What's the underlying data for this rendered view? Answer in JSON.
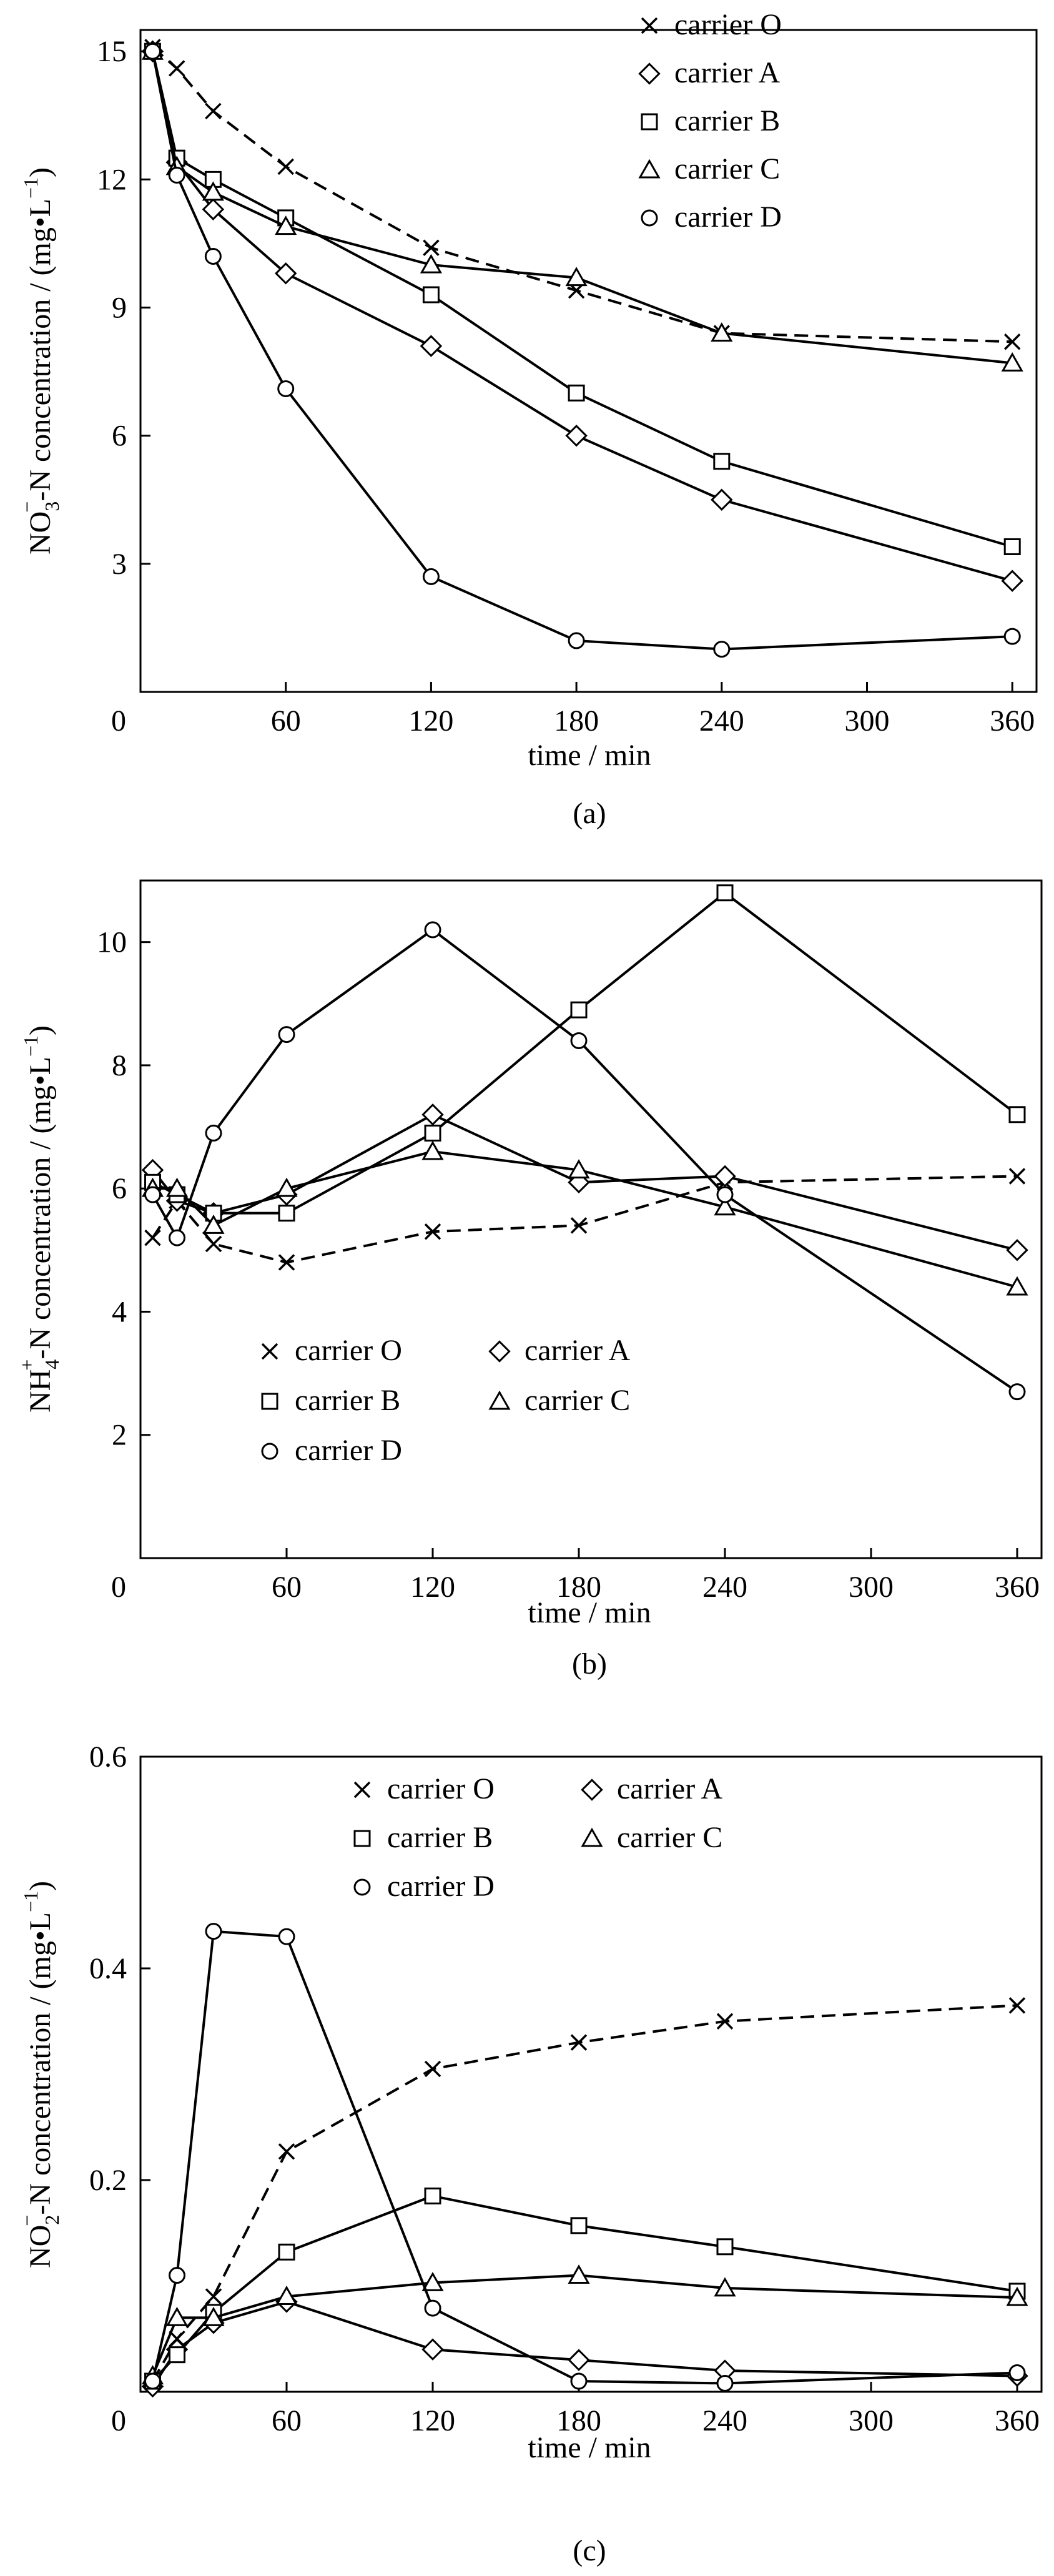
{
  "chart_data": [
    {
      "id": "a",
      "type": "line",
      "caption": "(a)",
      "xlabel": "time / min",
      "ylabel_parts": [
        "NO",
        "3",
        "−",
        "-N  concentration / (mg•L",
        "−1",
        ")"
      ],
      "xlim": [
        0,
        370
      ],
      "ylim": [
        0,
        15.5
      ],
      "xticks": [
        "0",
        "60",
        "120",
        "180",
        "240",
        "300",
        "360"
      ],
      "yticks": [
        "3",
        "6",
        "9",
        "12",
        "15"
      ],
      "legend_rows": [
        [
          "O"
        ],
        [
          "A"
        ],
        [
          "B"
        ],
        [
          "C"
        ],
        [
          "D"
        ]
      ],
      "series": [
        {
          "key": "O",
          "name": "carrier O",
          "marker": "x",
          "dashed": true,
          "x": [
            5,
            15,
            30,
            60,
            120,
            180,
            240,
            360
          ],
          "y": [
            15.1,
            14.6,
            13.6,
            12.3,
            10.4,
            9.4,
            8.4,
            8.2
          ]
        },
        {
          "key": "A",
          "name": "carrier A",
          "marker": "diamond",
          "dashed": false,
          "x": [
            5,
            15,
            30,
            60,
            120,
            180,
            240,
            360
          ],
          "y": [
            15.0,
            12.4,
            11.3,
            9.8,
            8.1,
            6.0,
            4.5,
            2.6
          ]
        },
        {
          "key": "B",
          "name": "carrier B",
          "marker": "square",
          "dashed": false,
          "x": [
            5,
            15,
            30,
            60,
            120,
            180,
            240,
            360
          ],
          "y": [
            15.0,
            12.5,
            12.0,
            11.1,
            9.3,
            7.0,
            5.4,
            3.4
          ]
        },
        {
          "key": "C",
          "name": "carrier C",
          "marker": "triangle",
          "dashed": false,
          "x": [
            5,
            15,
            30,
            60,
            120,
            180,
            240,
            360
          ],
          "y": [
            15.0,
            12.3,
            11.7,
            10.9,
            10.0,
            9.7,
            8.4,
            7.7
          ]
        },
        {
          "key": "D",
          "name": "carrier D",
          "marker": "circle",
          "dashed": false,
          "x": [
            5,
            15,
            30,
            60,
            120,
            180,
            240,
            360
          ],
          "y": [
            15.0,
            12.1,
            10.2,
            7.1,
            2.7,
            1.2,
            1.0,
            1.3
          ]
        }
      ]
    },
    {
      "id": "b",
      "type": "line",
      "caption": "(b)",
      "xlabel": "time / min",
      "ylabel_parts": [
        "NH",
        "4",
        "+",
        "-N  concentration / (mg•L",
        "−1",
        ")"
      ],
      "xlim": [
        0,
        370
      ],
      "ylim": [
        0,
        11
      ],
      "xticks": [
        "0",
        "60",
        "120",
        "180",
        "240",
        "300",
        "360"
      ],
      "yticks": [
        "2",
        "4",
        "6",
        "8",
        "10"
      ],
      "legend_rows": [
        [
          "O",
          "A"
        ],
        [
          "B",
          "C"
        ],
        [
          "D"
        ]
      ],
      "series": [
        {
          "key": "O",
          "name": "carrier O",
          "marker": "x",
          "dashed": true,
          "x": [
            5,
            15,
            30,
            60,
            120,
            180,
            240,
            360
          ],
          "y": [
            5.2,
            5.8,
            5.1,
            4.8,
            5.3,
            5.4,
            6.1,
            6.2
          ]
        },
        {
          "key": "A",
          "name": "carrier A",
          "marker": "diamond",
          "dashed": false,
          "x": [
            5,
            15,
            30,
            60,
            120,
            180,
            240,
            360
          ],
          "y": [
            6.3,
            5.8,
            5.6,
            5.9,
            7.2,
            6.1,
            6.2,
            5.0
          ]
        },
        {
          "key": "B",
          "name": "carrier B",
          "marker": "square",
          "dashed": false,
          "x": [
            5,
            15,
            30,
            60,
            120,
            180,
            240,
            360
          ],
          "y": [
            6.1,
            5.9,
            5.6,
            5.6,
            6.9,
            8.9,
            10.8,
            7.2
          ]
        },
        {
          "key": "C",
          "name": "carrier C",
          "marker": "triangle",
          "dashed": false,
          "x": [
            5,
            15,
            30,
            60,
            120,
            180,
            240,
            360
          ],
          "y": [
            6.0,
            6.0,
            5.4,
            6.0,
            6.6,
            6.3,
            5.7,
            4.4
          ]
        },
        {
          "key": "D",
          "name": "carrier D",
          "marker": "circle",
          "dashed": false,
          "x": [
            5,
            15,
            30,
            60,
            120,
            180,
            240,
            360
          ],
          "y": [
            5.9,
            5.2,
            6.9,
            8.5,
            10.2,
            8.4,
            5.9,
            2.7
          ]
        }
      ]
    },
    {
      "id": "c",
      "type": "line",
      "caption": "(c)",
      "xlabel": "time / min",
      "ylabel_parts": [
        "NO",
        "2",
        "−",
        "-N  concentration / (mg•L",
        "−1",
        ")"
      ],
      "xlim": [
        0,
        370
      ],
      "ylim": [
        0,
        0.6
      ],
      "xticks": [
        "0",
        "60",
        "120",
        "180",
        "240",
        "300",
        "360"
      ],
      "yticks": [
        "0.2",
        "0.4",
        "0.6"
      ],
      "legend_rows": [
        [
          "O",
          "A"
        ],
        [
          "B",
          "C"
        ],
        [
          "D"
        ]
      ],
      "series": [
        {
          "key": "O",
          "name": "carrier O",
          "marker": "x",
          "dashed": true,
          "x": [
            5,
            15,
            30,
            60,
            120,
            180,
            240,
            360
          ],
          "y": [
            0.01,
            0.05,
            0.09,
            0.227,
            0.305,
            0.33,
            0.35,
            0.365
          ]
        },
        {
          "key": "A",
          "name": "carrier A",
          "marker": "diamond",
          "dashed": false,
          "x": [
            5,
            15,
            30,
            60,
            120,
            180,
            240,
            360
          ],
          "y": [
            0.005,
            0.04,
            0.065,
            0.085,
            0.04,
            0.03,
            0.02,
            0.015
          ]
        },
        {
          "key": "B",
          "name": "carrier B",
          "marker": "square",
          "dashed": false,
          "x": [
            5,
            15,
            30,
            60,
            120,
            180,
            240,
            360
          ],
          "y": [
            0.01,
            0.035,
            0.075,
            0.132,
            0.185,
            0.157,
            0.137,
            0.095
          ]
        },
        {
          "key": "C",
          "name": "carrier C",
          "marker": "triangle",
          "dashed": false,
          "x": [
            5,
            15,
            30,
            60,
            120,
            180,
            240,
            360
          ],
          "y": [
            0.015,
            0.07,
            0.07,
            0.09,
            0.103,
            0.11,
            0.098,
            0.089
          ]
        },
        {
          "key": "D",
          "name": "carrier D",
          "marker": "circle",
          "dashed": false,
          "x": [
            5,
            15,
            30,
            60,
            120,
            180,
            240,
            360
          ],
          "y": [
            0.01,
            0.11,
            0.435,
            0.43,
            0.079,
            0.01,
            0.008,
            0.018
          ]
        }
      ]
    }
  ]
}
